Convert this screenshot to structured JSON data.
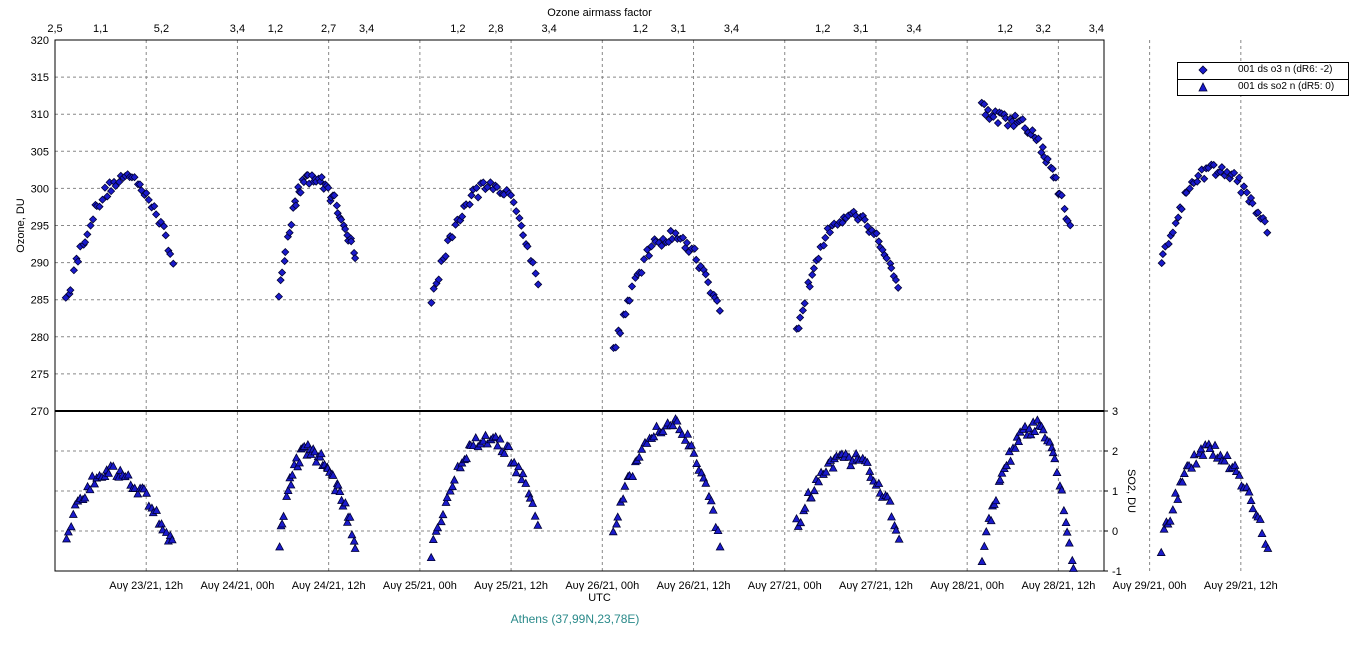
{
  "chart_data": {
    "type": "scatter",
    "top_axis_title": "Ozone airmass factor",
    "top_axis_ticks": [
      "2,5",
      "1,1",
      "5,2",
      "3,4",
      "1,2",
      "2,7",
      "3,4",
      "1,2",
      "2,8",
      "3,4",
      "1,2",
      "3,1",
      "3,4",
      "1,2",
      "3,1",
      "3,4",
      "1,2",
      "3,2",
      "3,4",
      "1,2"
    ],
    "xlabel": "UTC",
    "x_ticks": [
      "Aυγ 23/21, 12h",
      "Aυγ 24/21, 00h",
      "Aυγ 24/21, 12h",
      "Aυγ 25/21, 00h",
      "Aυγ 25/21, 12h",
      "Aυγ 26/21, 00h",
      "Aυγ 26/21, 12h",
      "Aυγ 27/21, 00h",
      "Aυγ 27/21, 12h",
      "Aυγ 28/21, 00h",
      "Aυγ 28/21, 12h",
      "Aυγ 29/21, 00h",
      "Aυγ 29/21, 12h"
    ],
    "x_range_hours": [
      -9,
      129
    ],
    "upper_panel": {
      "ylabel": "Ozone, DU",
      "ylim": [
        270,
        320
      ],
      "y_ticks": [
        "270",
        "275",
        "280",
        "285",
        "290",
        "295",
        "300",
        "305",
        "310",
        "315",
        "320"
      ]
    },
    "lower_panel": {
      "ylabel": "SO2, DU",
      "ylim": [
        -1,
        3
      ],
      "y_ticks": [
        "-1",
        "0",
        "1",
        "2",
        "3"
      ]
    },
    "grid": true,
    "legend_position": "top-right, outside plot",
    "series": [
      {
        "name": "001 ds o3  n (dR6: -2)",
        "marker": "diamond",
        "panel": "upper",
        "color": "#1a1acc",
        "days": [
          {
            "day_offset_h": 0,
            "x_start_h": -7.5,
            "x_end_h": 6.5,
            "y_start": 285,
            "y_peak": 301.5,
            "y_end": 290,
            "peak_h": 0.5
          },
          {
            "day_offset_h": 24,
            "x_start_h": -3.5,
            "x_end_h": 6.5,
            "y_start": 286,
            "y_peak": 301.5,
            "y_end": 290.5,
            "peak_h": 0.5
          },
          {
            "day_offset_h": 48,
            "x_start_h": -7.5,
            "x_end_h": 6.5,
            "y_start": 285,
            "y_peak": 300.5,
            "y_end": 287.5,
            "peak_h": 0.5
          },
          {
            "day_offset_h": 72,
            "x_start_h": -7.5,
            "x_end_h": 6.5,
            "y_start": 278,
            "y_peak": 293.5,
            "y_end": 283,
            "peak_h": 0
          },
          {
            "day_offset_h": 96,
            "x_start_h": -7.5,
            "x_end_h": 6.0,
            "y_start": 280,
            "y_peak": 296.5,
            "y_end": 286.5,
            "peak_h": -0.5
          },
          {
            "day_offset_h": 120,
            "x_start_h": -7.0,
            "x_end_h": 4.5,
            "y_start": 311,
            "y_peak": 309,
            "y_end": 294.5,
            "peak_h": -3.0
          },
          {
            "day_offset_h": 144,
            "x_start_h": -7.5,
            "x_end_h": 6.5,
            "y_start": 289.5,
            "y_peak": 302.5,
            "y_end": 294,
            "peak_h": -0.5
          }
        ]
      },
      {
        "name": "001 ds so2 n (dR5: 0)",
        "marker": "triangle",
        "panel": "lower",
        "color": "#1a1acc",
        "days": [
          {
            "day_offset_h": 0,
            "x_start_h": -7.5,
            "x_end_h": 6.5,
            "y_start": -0.1,
            "y_peak": 1.5,
            "y_end": -0.4,
            "peak_h": -2
          },
          {
            "day_offset_h": 24,
            "x_start_h": -3.5,
            "x_end_h": 6.5,
            "y_start": -0.3,
            "y_peak": 2.0,
            "y_end": -0.3,
            "peak_h": 0
          },
          {
            "day_offset_h": 48,
            "x_start_h": -7.5,
            "x_end_h": 6.5,
            "y_start": -0.5,
            "y_peak": 2.3,
            "y_end": 0.2,
            "peak_h": 0
          },
          {
            "day_offset_h": 72,
            "x_start_h": -7.5,
            "x_end_h": 6.5,
            "y_start": 0.0,
            "y_peak": 2.7,
            "y_end": -0.4,
            "peak_h": 0
          },
          {
            "day_offset_h": 96,
            "x_start_h": -7.5,
            "x_end_h": 6.0,
            "y_start": 0.1,
            "y_peak": 1.8,
            "y_end": 0.0,
            "peak_h": -0.5
          },
          {
            "day_offset_h": 120,
            "x_start_h": -7.0,
            "x_end_h": 5.0,
            "y_start": -0.6,
            "y_peak": 2.6,
            "y_end": -1.0,
            "peak_h": 0
          },
          {
            "day_offset_h": 144,
            "x_start_h": -7.5,
            "x_end_h": 6.5,
            "y_start": -0.4,
            "y_peak": 2.0,
            "y_end": -0.4,
            "peak_h": -1
          }
        ]
      }
    ],
    "location_label": "Athens (37,99N,23,78E)"
  }
}
